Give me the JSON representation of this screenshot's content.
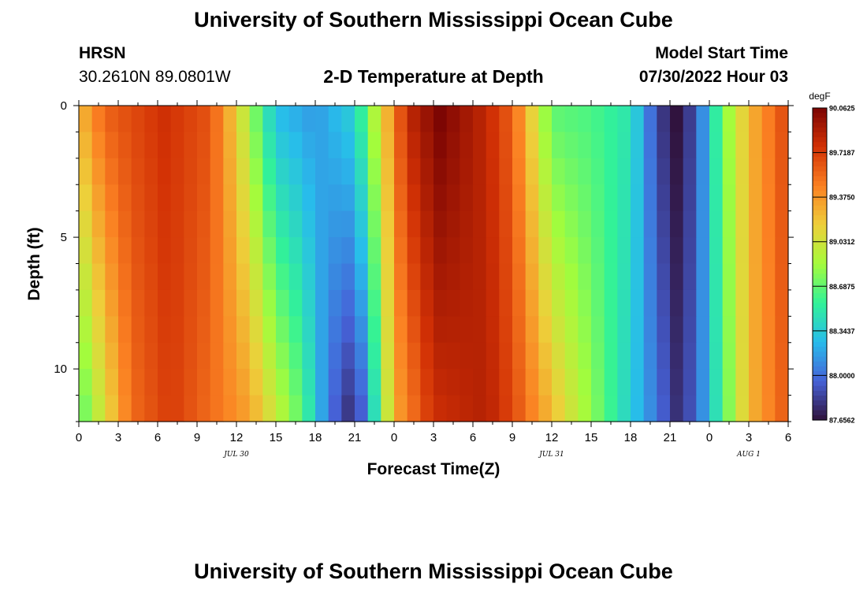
{
  "header": {
    "main_title": "University of Southern Mississippi Ocean Cube",
    "station": "HRSN",
    "coordinates": "30.2610N  89.0801W",
    "plot_title": "2-D Temperature at Depth",
    "model_label": "Model Start Time",
    "model_time": "07/30/2022 Hour 03"
  },
  "footer": {
    "main_title": "University of Southern Mississippi Ocean Cube"
  },
  "colors": {
    "colormap": [
      "#30123b",
      "#4662d8",
      "#28bceb",
      "#32f298",
      "#a4fc3c",
      "#eecf3a",
      "#fb8022",
      "#d23105",
      "#7a0403"
    ]
  },
  "chart_data": {
    "type": "heatmap",
    "title": "2-D Temperature at Depth",
    "xlabel": "Forecast Time(Z)",
    "ylabel": "Depth (ft)",
    "x_tick_labels": [
      "0",
      "3",
      "6",
      "9",
      "12",
      "15",
      "18",
      "21",
      "0",
      "3",
      "6",
      "9",
      "12",
      "15",
      "18",
      "21",
      "0",
      "3",
      "6"
    ],
    "x_ticks_hours": [
      0,
      3,
      6,
      9,
      12,
      15,
      18,
      21,
      24,
      27,
      30,
      33,
      36,
      39,
      42,
      45,
      48,
      51,
      54
    ],
    "x_range_hours": [
      0,
      54
    ],
    "date_labels": [
      {
        "text": "JUL 30",
        "hour": 12
      },
      {
        "text": "JUL 31",
        "hour": 36
      },
      {
        "text": "AUG 1",
        "hour": 51
      }
    ],
    "y_tick_labels": [
      "0",
      "5",
      "10"
    ],
    "y_ticks_ft": [
      0,
      5,
      10
    ],
    "y_range_ft": [
      0,
      12
    ],
    "colorbar": {
      "unit": "degF",
      "min": 87.65625,
      "max": 90.0625,
      "tick_labels": [
        "90.0625",
        "89.7187",
        "89.3750",
        "89.0312",
        "88.6875",
        "88.3437",
        "88.0000",
        "87.6562"
      ]
    },
    "time_resolution_hours": 1,
    "depth_levels_ft": [
      0,
      1,
      2,
      3,
      4,
      5,
      6,
      7,
      8,
      9,
      10,
      11,
      12
    ],
    "surface_minima_hours": [
      15,
      21,
      45.5
    ],
    "surface_maxima_hours": [
      6.5,
      27.5
    ],
    "description_series": [
      {
        "name": "cold trough 1",
        "hour_at_surface": 15,
        "hour_at_bottom": 21
      },
      {
        "name": "cold trough 2",
        "hour_at_surface": 44.5,
        "hour_at_bottom": 45.5
      }
    ]
  }
}
